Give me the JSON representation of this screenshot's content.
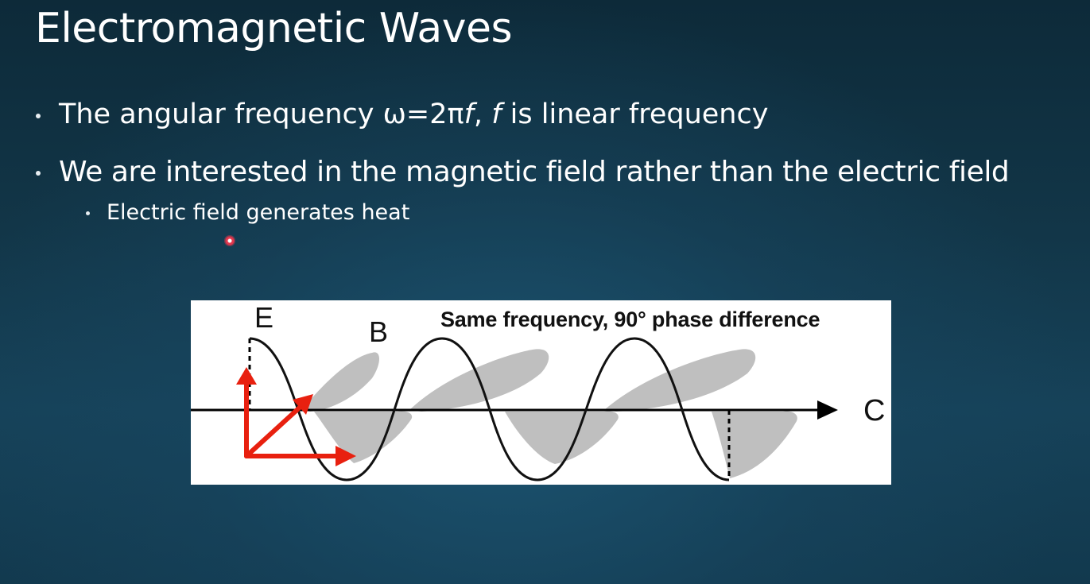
{
  "slide": {
    "title": "Electromagnetic Waves",
    "bullets": [
      {
        "level": 1,
        "text_before": "The angular frequency ω=2π",
        "f1": "f",
        "comma": ",",
        "f2": "f",
        "text_after": "is linear frequency"
      },
      {
        "level": 1,
        "text": "We are interested in the magnetic field rather than the electric field"
      },
      {
        "level": 2,
        "text": "Electric field generates heat"
      }
    ]
  },
  "figure": {
    "label_e": "E",
    "label_b": "B",
    "label_c": "C",
    "caption": "Same frequency, 90° phase difference",
    "colors": {
      "e_wave": "#111111",
      "b_wave": "#bfbfbf",
      "axes_arrows": "#e8200f",
      "propagation_axis": "#000000"
    }
  },
  "pointer": {
    "icon": "laser-pointer-dot",
    "color": "#e2374d"
  }
}
